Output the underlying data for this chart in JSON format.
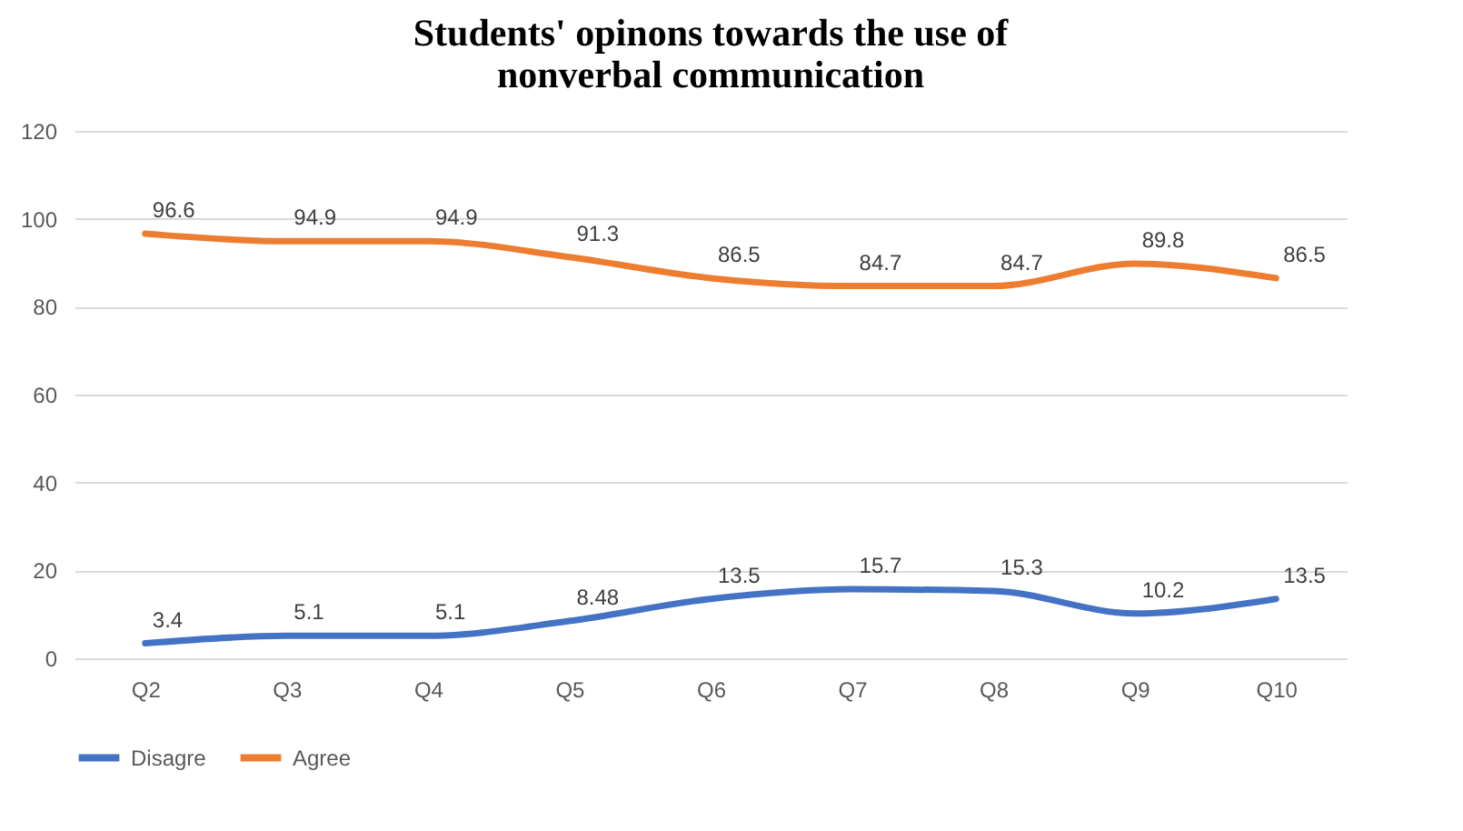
{
  "chart_data": {
    "type": "line",
    "title": "Students' opinons towards the use of nonverbal communication",
    "categories": [
      "Q2",
      "Q3",
      "Q4",
      "Q5",
      "Q6",
      "Q7",
      "Q8",
      "Q9",
      "Q10"
    ],
    "series": [
      {
        "name": "Disagre",
        "color": "#4472c4",
        "values": [
          3.4,
          5.1,
          5.1,
          8.48,
          13.5,
          15.7,
          15.3,
          10.2,
          13.5
        ]
      },
      {
        "name": "Agree",
        "color": "#ed7d31",
        "values": [
          96.6,
          94.9,
          94.9,
          91.3,
          86.5,
          84.7,
          84.7,
          89.8,
          86.5
        ]
      }
    ],
    "ylim": [
      0,
      120
    ],
    "yticks": [
      0,
      20,
      40,
      60,
      80,
      100,
      120
    ],
    "grid": "y",
    "legend": "bottom",
    "data_labels": true,
    "marker": "none",
    "line_style": "solid"
  }
}
